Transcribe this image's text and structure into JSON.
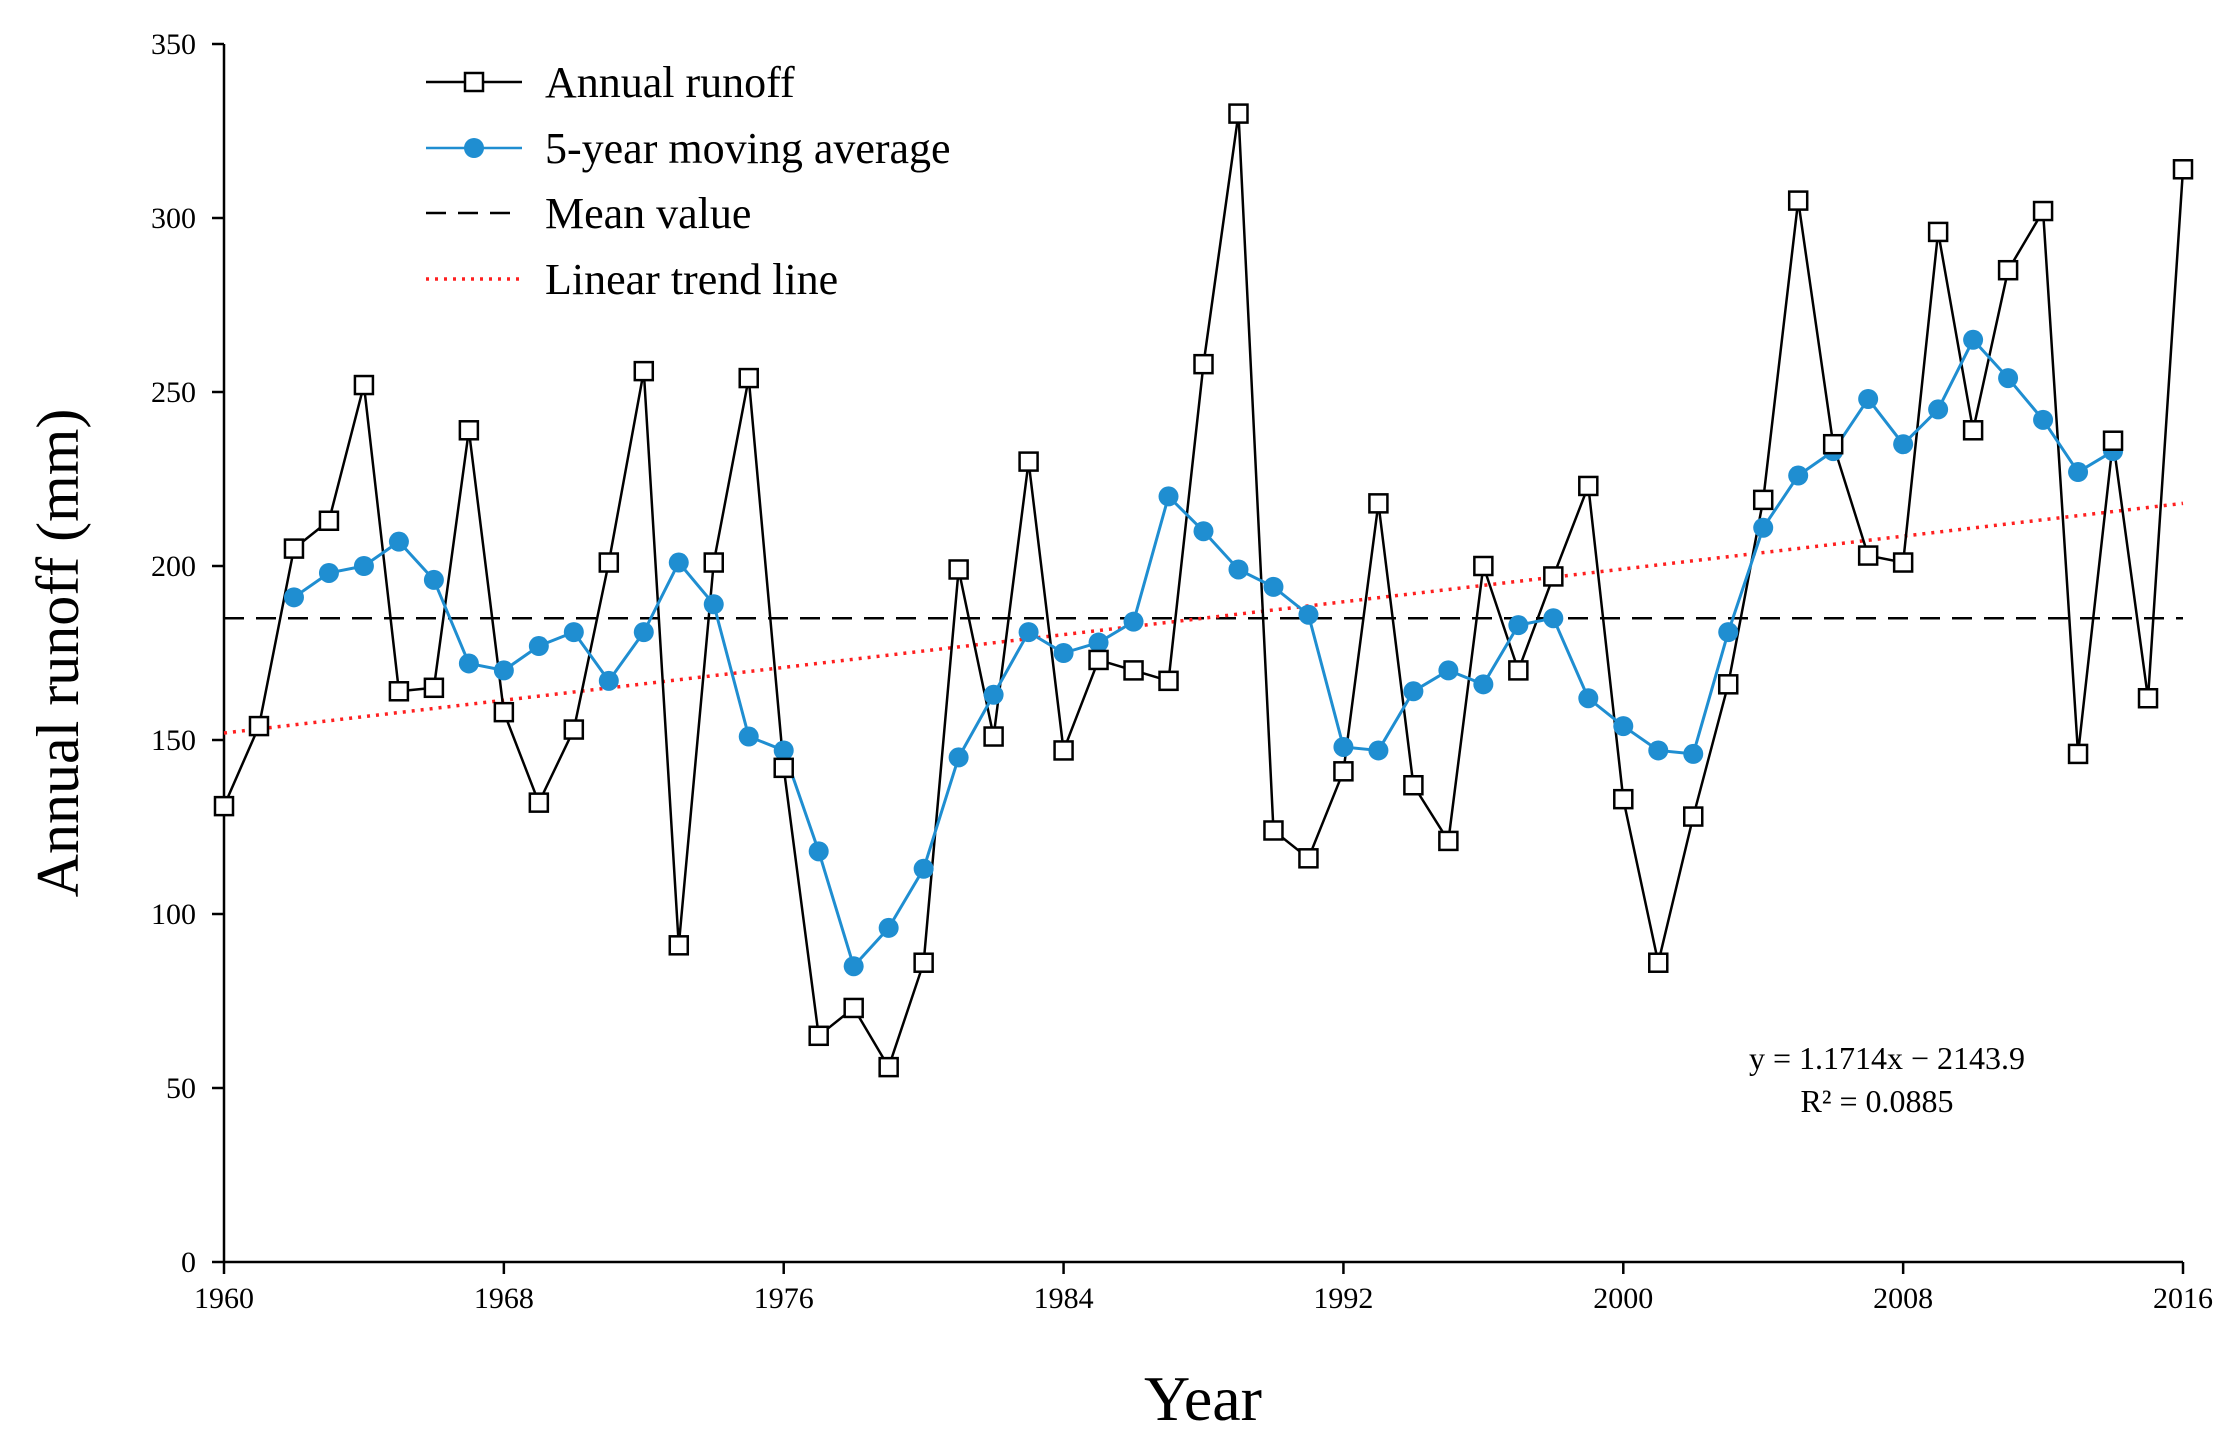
{
  "chart_data": {
    "type": "line",
    "title": "",
    "xlabel": "Year",
    "ylabel": "Annual runoff (mm)",
    "xlim": [
      1960,
      2016
    ],
    "ylim": [
      0,
      350
    ],
    "x_ticks": [
      1960,
      1968,
      1976,
      1984,
      1992,
      2000,
      2008,
      2016
    ],
    "y_ticks": [
      0,
      50,
      100,
      150,
      200,
      250,
      300,
      350
    ],
    "legend_position": "top-left",
    "grid": false,
    "annotation": {
      "equation": "y = 1.1714x − 2143.9",
      "r_squared": "R² = 0.0885"
    },
    "series": [
      {
        "name": "Annual runoff",
        "style": "black-square-markers",
        "color": "#000000",
        "x": [
          1960,
          1961,
          1962,
          1963,
          1964,
          1965,
          1966,
          1967,
          1968,
          1969,
          1970,
          1971,
          1972,
          1973,
          1974,
          1975,
          1976,
          1977,
          1978,
          1979,
          1980,
          1981,
          1982,
          1983,
          1984,
          1985,
          1986,
          1987,
          1988,
          1989,
          1990,
          1991,
          1992,
          1993,
          1994,
          1995,
          1996,
          1997,
          1998,
          1999,
          2000,
          2001,
          2002,
          2003,
          2004,
          2005,
          2006,
          2007,
          2008,
          2009,
          2010,
          2011,
          2012,
          2013,
          2014,
          2015,
          2016
        ],
        "values": [
          131,
          154,
          205,
          213,
          252,
          164,
          165,
          239,
          158,
          132,
          153,
          201,
          256,
          91,
          201,
          254,
          142,
          65,
          73,
          56,
          86,
          199,
          151,
          230,
          147,
          173,
          170,
          167,
          258,
          330,
          124,
          116,
          141,
          218,
          137,
          121,
          200,
          170,
          197,
          223,
          133,
          86,
          128,
          166,
          219,
          305,
          235,
          203,
          201,
          296,
          239,
          285,
          302,
          146,
          236,
          162,
          314
        ]
      },
      {
        "name": "5-year moving average",
        "style": "blue-circle-markers",
        "color": "#1f8ed1",
        "x": [
          1962,
          1963,
          1964,
          1965,
          1966,
          1967,
          1968,
          1969,
          1970,
          1971,
          1972,
          1973,
          1974,
          1975,
          1976,
          1977,
          1978,
          1979,
          1980,
          1981,
          1982,
          1983,
          1984,
          1985,
          1986,
          1987,
          1988,
          1989,
          1990,
          1991,
          1992,
          1993,
          1994,
          1995,
          1996,
          1997,
          1998,
          1999,
          2000,
          2001,
          2002,
          2003,
          2004,
          2005,
          2006,
          2007,
          2008,
          2009,
          2010,
          2011,
          2012,
          2013,
          2014
        ],
        "values": [
          191,
          198,
          200,
          207,
          196,
          172,
          170,
          177,
          181,
          167,
          181,
          201,
          189,
          151,
          147,
          118,
          85,
          96,
          113,
          145,
          163,
          181,
          175,
          178,
          184,
          220,
          210,
          199,
          194,
          186,
          148,
          147,
          164,
          170,
          166,
          183,
          185,
          162,
          154,
          147,
          146,
          181,
          211,
          226,
          233,
          248,
          235,
          245,
          265,
          254,
          242,
          227,
          233
        ]
      },
      {
        "name": "Mean value",
        "style": "black-dashed",
        "color": "#000000",
        "x": [
          1960,
          2016
        ],
        "values": [
          185,
          185
        ]
      },
      {
        "name": "Linear trend line",
        "style": "red-dotted",
        "color": "#ff2020",
        "x": [
          1960,
          2016
        ],
        "values": [
          152,
          218
        ]
      }
    ]
  }
}
